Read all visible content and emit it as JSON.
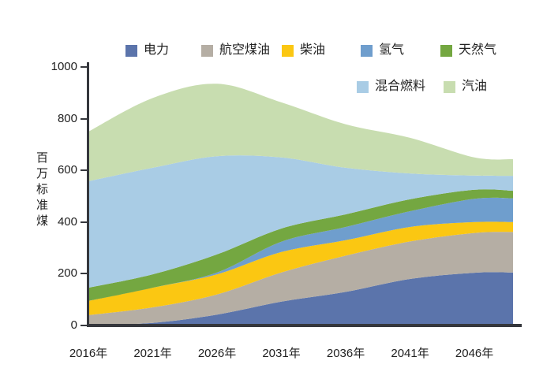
{
  "chart_data": {
    "type": "area",
    "stacked": true,
    "title": "",
    "ylabel": "百万标准煤",
    "xlabel": "",
    "grid": false,
    "legend_position": "top",
    "ylim": [
      0,
      1000
    ],
    "yticks": [
      0,
      200,
      400,
      600,
      800,
      1000
    ],
    "x": [
      2016,
      2021,
      2026,
      2031,
      2036,
      2041,
      2046,
      2049
    ],
    "x_ticks": [
      {
        "year": 2016,
        "label": "2016年"
      },
      {
        "year": 2021,
        "label": "2021年"
      },
      {
        "year": 2026,
        "label": "2026年"
      },
      {
        "year": 2031,
        "label": "2031年"
      },
      {
        "year": 2036,
        "label": "2036年"
      },
      {
        "year": 2041,
        "label": "2041年"
      },
      {
        "year": 2046,
        "label": "2046年"
      }
    ],
    "series": [
      {
        "name": "电力",
        "color": "#5b74ab",
        "values": [
          2,
          10,
          42,
          92,
          130,
          180,
          204,
          205
        ]
      },
      {
        "name": "航空煤油",
        "color": "#b5aea4",
        "values": [
          38,
          60,
          78,
          113,
          140,
          145,
          154,
          157
        ]
      },
      {
        "name": "柴油",
        "color": "#fbc712",
        "values": [
          55,
          76,
          78,
          79,
          60,
          56,
          42,
          38
        ]
      },
      {
        "name": "氢气",
        "color": "#6f9ecd",
        "values": [
          0,
          0,
          7,
          40,
          51,
          61,
          90,
          92
        ]
      },
      {
        "name": "天然气",
        "color": "#74a741",
        "values": [
          51,
          52,
          70,
          51,
          49,
          46,
          35,
          29
        ]
      },
      {
        "name": "混合燃料",
        "color": "#a9cce5",
        "values": [
          412,
          412,
          380,
          275,
          180,
          100,
          55,
          58
        ]
      },
      {
        "name": "汽油",
        "color": "#c8ddb0",
        "values": [
          192,
          270,
          280,
          213,
          168,
          138,
          70,
          64
        ]
      }
    ],
    "axis_color": "#35373c"
  }
}
